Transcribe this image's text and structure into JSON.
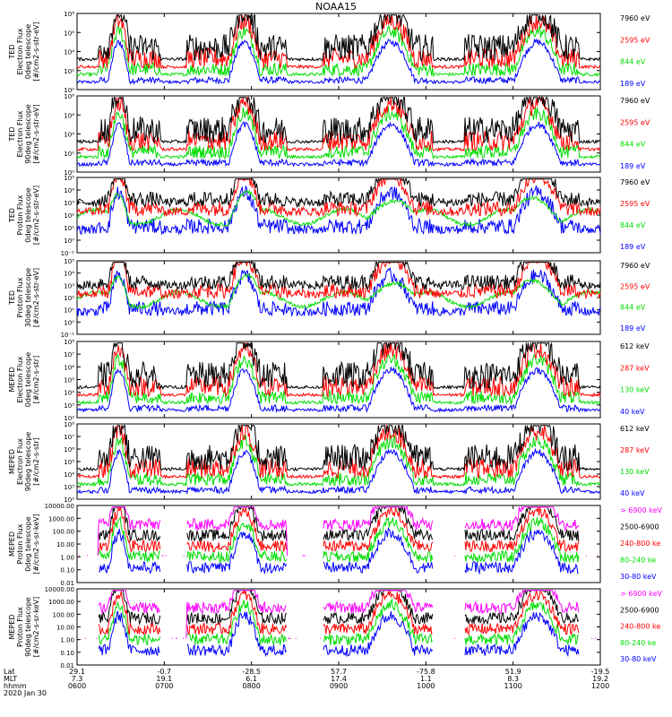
{
  "title": "NOAA15",
  "colors": {
    "blue": "#0000ff",
    "red": "#ff0000",
    "green": "#00dd00",
    "black": "#000000",
    "magenta": "#ff00ff"
  },
  "chart_data": [
    {
      "type": "line",
      "ylabel": [
        "TED",
        "Electron Flux",
        "0deg telescope",
        "[#/cm2-s-str-eV]"
      ],
      "yscale": "log",
      "ylim_exp": [
        0,
        8
      ],
      "yticks": [
        "10⁰",
        "10²",
        "10⁴",
        "10⁶",
        "10⁸"
      ],
      "series": [
        {
          "name": "7960 eV",
          "color": "#000000"
        },
        {
          "name": "2595 eV",
          "color": "#ff0000"
        },
        {
          "name": "844 eV",
          "color": "#00dd00"
        },
        {
          "name": "189 eV",
          "color": "#0000ff"
        }
      ]
    },
    {
      "type": "line",
      "ylabel": [
        "TED",
        "Electron Flux",
        "90deg telescope",
        "[#/cm2-s-str-eV]"
      ],
      "yscale": "log",
      "ylim_exp": [
        0,
        8
      ],
      "yticks": [
        "10⁰",
        "10²",
        "10⁴",
        "10⁶",
        "10⁸"
      ],
      "series": [
        {
          "name": "7960 eV",
          "color": "#000000"
        },
        {
          "name": "2595 eV",
          "color": "#ff0000"
        },
        {
          "name": "844 eV",
          "color": "#00dd00"
        },
        {
          "name": "189 eV",
          "color": "#0000ff"
        }
      ]
    },
    {
      "type": "line",
      "ylabel": [
        "TED",
        "Proton Flux",
        "0deg telescope",
        "[#/cm2-s-str-eV]"
      ],
      "yscale": "log",
      "ylim_exp": [
        -1,
        5
      ],
      "yticks": [
        "10⁻¹",
        "10⁰",
        "10¹",
        "10²",
        "10³",
        "10⁴",
        "10⁵"
      ],
      "series": [
        {
          "name": "7960 eV",
          "color": "#000000"
        },
        {
          "name": "2595 eV",
          "color": "#ff0000"
        },
        {
          "name": "844 eV",
          "color": "#00dd00"
        },
        {
          "name": "189 eV",
          "color": "#0000ff"
        }
      ]
    },
    {
      "type": "line",
      "ylabel": [
        "TED",
        "Proton Flux",
        "30deg telescope",
        "[#/cm2-s-str-eV]"
      ],
      "yscale": "log",
      "ylim_exp": [
        -1,
        5
      ],
      "yticks": [
        "10⁻¹",
        "10⁰",
        "10¹",
        "10²",
        "10³",
        "10⁴",
        "10⁵"
      ],
      "series": [
        {
          "name": "7960 eV",
          "color": "#000000"
        },
        {
          "name": "2595 eV",
          "color": "#ff0000"
        },
        {
          "name": "844 eV",
          "color": "#00dd00"
        },
        {
          "name": "189 eV",
          "color": "#0000ff"
        }
      ]
    },
    {
      "type": "line",
      "ylabel": [
        "MEPED",
        "Electron Flux",
        "0deg telescope",
        "[#/cm2-s-str]"
      ],
      "yscale": "log",
      "ylim_exp": [
        2,
        8
      ],
      "yticks": [
        "10²",
        "10³",
        "10⁴",
        "10⁵",
        "10⁶",
        "10⁷",
        "10⁸"
      ],
      "series": [
        {
          "name": "612 keV",
          "color": "#000000"
        },
        {
          "name": "287 keV",
          "color": "#ff0000"
        },
        {
          "name": "130 keV",
          "color": "#00dd00"
        },
        {
          "name": "40 keV",
          "color": "#0000ff"
        }
      ]
    },
    {
      "type": "line",
      "ylabel": [
        "MEPED",
        "Electron Flux",
        "90deg telescope",
        "[#/cm2-s-str]"
      ],
      "yscale": "log",
      "ylim_exp": [
        2,
        8
      ],
      "yticks": [
        "10²",
        "10³",
        "10⁴",
        "10⁵",
        "10⁶",
        "10⁷",
        "10⁸"
      ],
      "series": [
        {
          "name": "612 keV",
          "color": "#000000"
        },
        {
          "name": "287 keV",
          "color": "#ff0000"
        },
        {
          "name": "130 keV",
          "color": "#00dd00"
        },
        {
          "name": "40 keV",
          "color": "#0000ff"
        }
      ]
    },
    {
      "type": "line",
      "ylabel": [
        "MEPED",
        "Proton Flux",
        "0deg telescope",
        "[#/cm2-s-sr-keV]"
      ],
      "yscale": "log",
      "ylim_exp": [
        -2,
        4
      ],
      "yticks": [
        "0.01",
        "0.10",
        "1.00",
        "10.00",
        "100.00",
        "1000.00",
        "10000.00"
      ],
      "series": [
        {
          "name": "> 6900 keV",
          "color": "#ff00ff"
        },
        {
          "name": "2500-6900",
          "color": "#000000"
        },
        {
          "name": "240-800 ke",
          "color": "#ff0000"
        },
        {
          "name": "80-240 ke",
          "color": "#00dd00"
        },
        {
          "name": "30-80 keV",
          "color": "#0000ff"
        }
      ]
    },
    {
      "type": "line",
      "ylabel": [
        "MEPED",
        "Proton Flux",
        "90deg telescope",
        "[#/cm2-s-sr-keV]"
      ],
      "yscale": "log",
      "ylim_exp": [
        -2,
        4
      ],
      "yticks": [
        "0.01",
        "0.10",
        "1.00",
        "10.00",
        "100.00",
        "1000.00",
        "10000.00"
      ],
      "series": [
        {
          "name": "> 6900 keV",
          "color": "#ff00ff"
        },
        {
          "name": "2500-6900",
          "color": "#000000"
        },
        {
          "name": "240-800 ke",
          "color": "#ff0000"
        },
        {
          "name": "80-240 ke",
          "color": "#00dd00"
        },
        {
          "name": "30-80 keV",
          "color": "#0000ff"
        }
      ]
    }
  ],
  "footer": {
    "row_labels": [
      "Lat",
      "MLT",
      "hhmm",
      "2020 Jan 30"
    ],
    "lat": [
      "29.1",
      "-0.7",
      "-28.5",
      "57.7",
      "-75.8",
      "51.9",
      "-19.5"
    ],
    "mlt": [
      "7.3",
      "19.1",
      "6.1",
      "17.4",
      "1.1",
      "8.3",
      "19.2"
    ],
    "hhmm": [
      "0600",
      "0700",
      "0800",
      "0900",
      "1000",
      "1100",
      "1200"
    ]
  }
}
